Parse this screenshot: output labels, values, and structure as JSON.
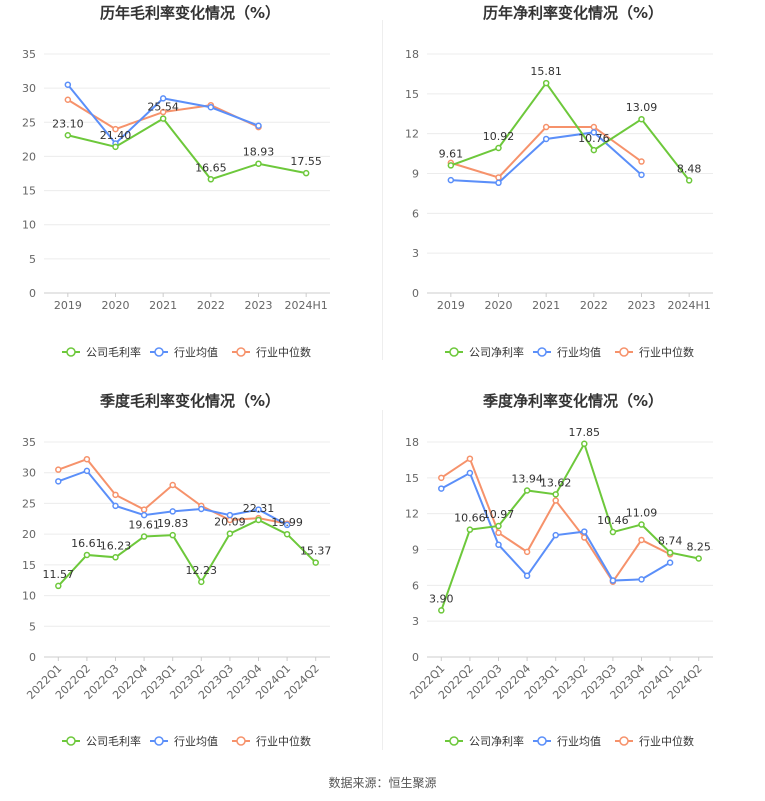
{
  "source": "数据来源：恒生聚源",
  "colors": {
    "company": "#6dc83b",
    "industry_avg": "#5b8ff9",
    "industry_median": "#f6926b"
  },
  "chart_data": [
    {
      "type": "line",
      "title": "历年毛利率变化情况（%）",
      "categories": [
        "2019",
        "2020",
        "2021",
        "2022",
        "2023",
        "2024H1"
      ],
      "ylim": [
        0,
        35
      ],
      "yticks": [
        0,
        5,
        10,
        15,
        20,
        25,
        30,
        35
      ],
      "series": [
        {
          "name": "公司毛利率",
          "key": "company",
          "values": [
            23.1,
            21.4,
            25.54,
            16.65,
            18.93,
            17.55
          ]
        },
        {
          "name": "行业均值",
          "key": "industry_avg",
          "values": [
            30.5,
            21.9,
            28.5,
            27.2,
            24.5,
            null
          ]
        },
        {
          "name": "行业中位数",
          "key": "industry_median",
          "values": [
            28.3,
            24.0,
            26.5,
            27.5,
            24.3,
            null
          ]
        }
      ],
      "labels": [
        "23.10",
        "21.40",
        "25.54",
        "16.65",
        "18.93",
        "17.55"
      ]
    },
    {
      "type": "line",
      "title": "历年净利率变化情况（%）",
      "categories": [
        "2019",
        "2020",
        "2021",
        "2022",
        "2023",
        "2024H1"
      ],
      "ylim": [
        0,
        18
      ],
      "yticks": [
        0,
        3,
        6,
        9,
        12,
        15,
        18
      ],
      "series": [
        {
          "name": "公司净利率",
          "key": "company",
          "values": [
            9.61,
            10.92,
            15.81,
            10.76,
            13.09,
            8.48
          ]
        },
        {
          "name": "行业均值",
          "key": "industry_avg",
          "values": [
            8.5,
            8.3,
            11.6,
            12.1,
            8.9,
            null
          ]
        },
        {
          "name": "行业中位数",
          "key": "industry_median",
          "values": [
            9.8,
            8.7,
            12.5,
            12.5,
            9.9,
            null
          ]
        }
      ],
      "labels": [
        "9.61",
        "10.92",
        "15.81",
        "10.76",
        "13.09",
        "8.48"
      ]
    },
    {
      "type": "line",
      "title": "季度毛利率变化情况（%）",
      "categories": [
        "2022Q1",
        "2022Q2",
        "2022Q3",
        "2022Q4",
        "2023Q1",
        "2023Q2",
        "2023Q3",
        "2023Q4",
        "2024Q1",
        "2024Q2"
      ],
      "ylim": [
        0,
        35
      ],
      "yticks": [
        0,
        5,
        10,
        15,
        20,
        25,
        30,
        35
      ],
      "series": [
        {
          "name": "公司毛利率",
          "key": "company",
          "values": [
            11.57,
            16.61,
            16.23,
            19.61,
            19.83,
            12.23,
            20.09,
            22.31,
            19.99,
            15.37
          ]
        },
        {
          "name": "行业均值",
          "key": "industry_avg",
          "values": [
            28.6,
            30.3,
            24.6,
            23.1,
            23.7,
            24.1,
            23.1,
            24.0,
            21.5,
            null
          ]
        },
        {
          "name": "行业中位数",
          "key": "industry_median",
          "values": [
            30.5,
            32.2,
            26.4,
            24.0,
            28.0,
            24.6,
            22.3,
            22.6,
            21.7,
            null
          ]
        }
      ],
      "labels": [
        "11.57",
        "16.61",
        "16.23",
        "19.61",
        "19.83",
        "12.23",
        "20.09",
        "22.31",
        "19.99",
        "15.37"
      ]
    },
    {
      "type": "line",
      "title": "季度净利率变化情况（%）",
      "categories": [
        "2022Q1",
        "2022Q2",
        "2022Q3",
        "2022Q4",
        "2023Q1",
        "2023Q2",
        "2023Q3",
        "2023Q4",
        "2024Q1",
        "2024Q2"
      ],
      "ylim": [
        0,
        18
      ],
      "yticks": [
        0,
        3,
        6,
        9,
        12,
        15,
        18
      ],
      "series": [
        {
          "name": "公司净利率",
          "key": "company",
          "values": [
            3.9,
            10.66,
            10.97,
            13.94,
            13.62,
            17.85,
            10.46,
            11.09,
            8.74,
            8.25
          ]
        },
        {
          "name": "行业均值",
          "key": "industry_avg",
          "values": [
            14.1,
            15.4,
            9.4,
            6.8,
            10.2,
            10.5,
            6.4,
            6.5,
            7.9,
            null
          ]
        },
        {
          "name": "行业中位数",
          "key": "industry_median",
          "values": [
            15.0,
            16.6,
            10.4,
            8.8,
            13.1,
            10.0,
            6.3,
            9.8,
            8.6,
            null
          ]
        }
      ],
      "labels": [
        "3.90",
        "10.66",
        "10.97",
        "13.94",
        "13.62",
        "17.85",
        "10.46",
        "11.09",
        "8.74",
        "8.25"
      ]
    }
  ]
}
